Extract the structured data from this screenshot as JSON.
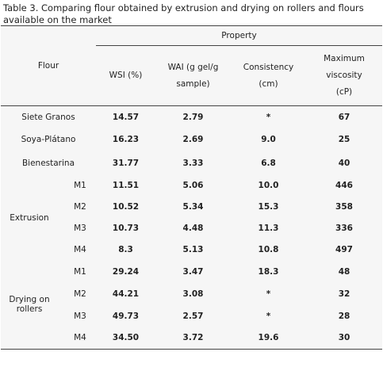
{
  "caption": "Table 3. Comparing flour obtained by extrusion and drying on rollers and flours available on the market",
  "table": {
    "header": {
      "flour": "Flour",
      "property": "Property",
      "columns": [
        "WSI (%)",
        "WAI (g gel/g sample)",
        "Consistency (cm)",
        "Maximum viscosity (cP)"
      ]
    },
    "rows": [
      {
        "flour": "Siete Granos",
        "values": [
          "14.57",
          "2.79",
          "*",
          "67"
        ]
      },
      {
        "flour": "Soya-Plátano",
        "values": [
          "16.23",
          "2.69",
          "9.0",
          "25"
        ]
      },
      {
        "flour": "Bienestarina",
        "values": [
          "31.77",
          "3.33",
          "6.8",
          "40"
        ]
      }
    ],
    "groups": [
      {
        "name": "Extrusion",
        "rows": [
          {
            "sample": "M1",
            "values": [
              "11.51",
              "5.06",
              "10.0",
              "446"
            ]
          },
          {
            "sample": "M2",
            "values": [
              "10.52",
              "5.34",
              "15.3",
              "358"
            ]
          },
          {
            "sample": "M3",
            "values": [
              "10.73",
              "4.48",
              "11.3",
              "336"
            ]
          },
          {
            "sample": "M4",
            "values": [
              "8.3",
              "5.13",
              "10.8",
              "497"
            ]
          }
        ]
      },
      {
        "name": "Drying on rollers",
        "rows": [
          {
            "sample": "M1",
            "values": [
              "29.24",
              "3.47",
              "18.3",
              "48"
            ]
          },
          {
            "sample": "M2",
            "values": [
              "44.21",
              "3.08",
              "*",
              "32"
            ]
          },
          {
            "sample": "M3",
            "values": [
              "49.73",
              "2.57",
              "*",
              "28"
            ]
          },
          {
            "sample": "M4",
            "values": [
              "34.50",
              "3.72",
              "19.6",
              "30"
            ]
          }
        ]
      }
    ]
  }
}
